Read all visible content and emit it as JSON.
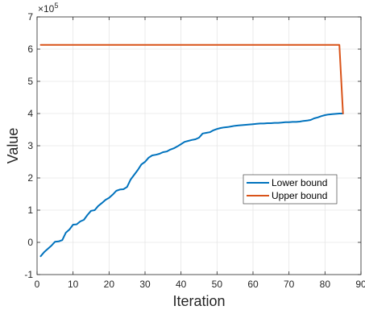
{
  "chart_data": {
    "type": "line",
    "xlabel": "Iteration",
    "ylabel": "Value",
    "y_exponent_base": "×10",
    "y_exponent_power": "5",
    "xlim": [
      0,
      90
    ],
    "ylim": [
      -1,
      7
    ],
    "x_ticks": [
      0,
      10,
      20,
      30,
      40,
      50,
      60,
      70,
      80,
      90
    ],
    "y_ticks": [
      -1,
      0,
      1,
      2,
      3,
      4,
      5,
      6,
      7
    ],
    "grid": true,
    "legend_position": "center-right",
    "series": [
      {
        "name": "Lower bound",
        "color": "#0072BD",
        "x": [
          1,
          2,
          3,
          4,
          5,
          6,
          7,
          8,
          9,
          10,
          11,
          12,
          13,
          14,
          15,
          16,
          17,
          18,
          19,
          20,
          21,
          22,
          23,
          24,
          25,
          26,
          27,
          28,
          29,
          30,
          31,
          32,
          33,
          34,
          35,
          36,
          37,
          38,
          39,
          40,
          41,
          42,
          43,
          44,
          45,
          46,
          47,
          48,
          49,
          50,
          51,
          52,
          53,
          54,
          55,
          56,
          57,
          58,
          59,
          60,
          61,
          62,
          63,
          64,
          65,
          66,
          67,
          68,
          69,
          70,
          71,
          72,
          73,
          74,
          75,
          76,
          77,
          78,
          79,
          80,
          81,
          82,
          83,
          84,
          85
        ],
        "y": [
          -0.43,
          -0.3,
          -0.2,
          -0.1,
          0.02,
          0.03,
          0.07,
          0.3,
          0.4,
          0.55,
          0.56,
          0.65,
          0.7,
          0.85,
          0.98,
          1.0,
          1.13,
          1.22,
          1.32,
          1.38,
          1.48,
          1.6,
          1.64,
          1.65,
          1.72,
          1.95,
          2.1,
          2.25,
          2.42,
          2.5,
          2.63,
          2.7,
          2.72,
          2.75,
          2.8,
          2.82,
          2.88,
          2.92,
          2.98,
          3.05,
          3.12,
          3.15,
          3.18,
          3.2,
          3.25,
          3.38,
          3.4,
          3.42,
          3.48,
          3.52,
          3.55,
          3.57,
          3.58,
          3.6,
          3.62,
          3.63,
          3.64,
          3.65,
          3.66,
          3.67,
          3.68,
          3.69,
          3.69,
          3.7,
          3.7,
          3.71,
          3.71,
          3.72,
          3.73,
          3.73,
          3.74,
          3.74,
          3.75,
          3.77,
          3.78,
          3.8,
          3.85,
          3.88,
          3.92,
          3.95,
          3.97,
          3.98,
          3.99,
          4.0,
          4.0
        ]
      },
      {
        "name": "Upper bound",
        "color": "#D95319",
        "x": [
          1,
          84,
          85
        ],
        "y": [
          6.13,
          6.13,
          4.0
        ]
      }
    ]
  }
}
